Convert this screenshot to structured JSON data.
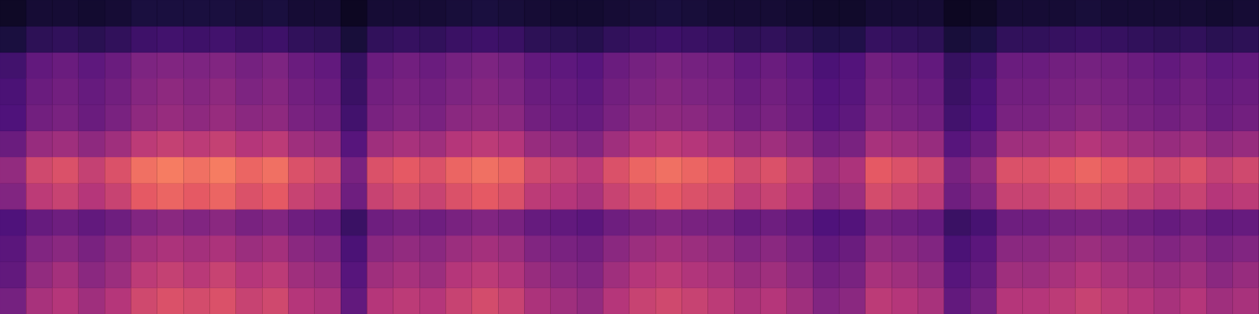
{
  "chart_data": {
    "type": "heatmap",
    "tick_labels": false,
    "ylim": [
      0,
      12
    ],
    "zlim": [
      0,
      1
    ],
    "cells": [
      [
        0.35,
        0.47,
        0.5,
        0.45,
        0.5,
        0.57,
        0.6,
        0.58,
        0.6,
        0.55,
        0.57,
        0.5,
        0.48,
        0.3,
        0.5,
        0.52,
        0.5,
        0.55,
        0.58,
        0.55,
        0.48,
        0.45,
        0.42,
        0.5,
        0.55,
        0.57,
        0.55,
        0.52,
        0.48,
        0.5,
        0.45,
        0.38,
        0.4,
        0.52,
        0.5,
        0.47,
        0.3,
        0.35,
        0.5,
        0.5,
        0.52,
        0.55,
        0.52,
        0.5,
        0.47,
        0.5,
        0.45,
        0.47
      ],
      [
        0.3,
        0.42,
        0.46,
        0.4,
        0.44,
        0.52,
        0.54,
        0.51,
        0.55,
        0.5,
        0.52,
        0.45,
        0.43,
        0.27,
        0.45,
        0.47,
        0.44,
        0.5,
        0.52,
        0.49,
        0.43,
        0.4,
        0.38,
        0.45,
        0.5,
        0.52,
        0.49,
        0.47,
        0.43,
        0.45,
        0.4,
        0.34,
        0.36,
        0.47,
        0.45,
        0.42,
        0.27,
        0.31,
        0.45,
        0.44,
        0.47,
        0.5,
        0.47,
        0.45,
        0.43,
        0.45,
        0.4,
        0.43
      ],
      [
        0.28,
        0.38,
        0.4,
        0.36,
        0.41,
        0.46,
        0.48,
        0.46,
        0.48,
        0.44,
        0.46,
        0.4,
        0.38,
        0.24,
        0.4,
        0.42,
        0.4,
        0.44,
        0.46,
        0.44,
        0.38,
        0.36,
        0.34,
        0.4,
        0.44,
        0.46,
        0.44,
        0.42,
        0.38,
        0.4,
        0.36,
        0.3,
        0.32,
        0.42,
        0.4,
        0.38,
        0.24,
        0.28,
        0.4,
        0.4,
        0.42,
        0.44,
        0.42,
        0.4,
        0.38,
        0.4,
        0.36,
        0.38
      ],
      [
        0.25,
        0.31,
        0.33,
        0.3,
        0.33,
        0.38,
        0.4,
        0.38,
        0.4,
        0.36,
        0.38,
        0.33,
        0.31,
        0.2,
        0.33,
        0.35,
        0.33,
        0.36,
        0.38,
        0.36,
        0.31,
        0.3,
        0.28,
        0.33,
        0.36,
        0.38,
        0.36,
        0.35,
        0.31,
        0.33,
        0.3,
        0.25,
        0.26,
        0.35,
        0.33,
        0.31,
        0.2,
        0.23,
        0.33,
        0.33,
        0.35,
        0.36,
        0.35,
        0.33,
        0.31,
        0.33,
        0.3,
        0.31
      ],
      [
        0.38,
        0.52,
        0.55,
        0.5,
        0.55,
        0.63,
        0.66,
        0.63,
        0.66,
        0.6,
        0.63,
        0.55,
        0.52,
        0.33,
        0.55,
        0.58,
        0.55,
        0.6,
        0.63,
        0.6,
        0.52,
        0.5,
        0.47,
        0.55,
        0.6,
        0.63,
        0.6,
        0.58,
        0.52,
        0.55,
        0.5,
        0.41,
        0.44,
        0.58,
        0.55,
        0.52,
        0.33,
        0.38,
        0.55,
        0.55,
        0.58,
        0.6,
        0.58,
        0.55,
        0.52,
        0.55,
        0.5,
        0.52
      ],
      [
        0.42,
        0.57,
        0.6,
        0.54,
        0.6,
        0.69,
        0.72,
        0.69,
        0.72,
        0.66,
        0.69,
        0.6,
        0.57,
        0.36,
        0.6,
        0.63,
        0.6,
        0.66,
        0.69,
        0.66,
        0.57,
        0.54,
        0.51,
        0.6,
        0.66,
        0.69,
        0.66,
        0.63,
        0.57,
        0.6,
        0.54,
        0.45,
        0.48,
        0.63,
        0.6,
        0.57,
        0.36,
        0.42,
        0.6,
        0.6,
        0.63,
        0.66,
        0.63,
        0.6,
        0.57,
        0.6,
        0.54,
        0.57
      ],
      [
        0.32,
        0.43,
        0.45,
        0.41,
        0.45,
        0.52,
        0.54,
        0.52,
        0.54,
        0.5,
        0.52,
        0.45,
        0.43,
        0.27,
        0.45,
        0.47,
        0.45,
        0.5,
        0.52,
        0.5,
        0.43,
        0.41,
        0.38,
        0.45,
        0.5,
        0.52,
        0.5,
        0.47,
        0.43,
        0.45,
        0.41,
        0.34,
        0.36,
        0.47,
        0.45,
        0.43,
        0.27,
        0.32,
        0.45,
        0.45,
        0.47,
        0.5,
        0.47,
        0.45,
        0.43,
        0.45,
        0.41,
        0.43
      ],
      [
        0.25,
        0.34,
        0.36,
        0.32,
        0.36,
        0.41,
        0.43,
        0.41,
        0.43,
        0.4,
        0.41,
        0.36,
        0.34,
        0.22,
        0.36,
        0.38,
        0.36,
        0.4,
        0.41,
        0.4,
        0.34,
        0.32,
        0.31,
        0.36,
        0.4,
        0.41,
        0.4,
        0.38,
        0.34,
        0.36,
        0.32,
        0.27,
        0.29,
        0.38,
        0.36,
        0.34,
        0.22,
        0.25,
        0.36,
        0.36,
        0.38,
        0.4,
        0.38,
        0.36,
        0.34,
        0.36,
        0.32,
        0.34
      ],
      [
        0.24,
        0.32,
        0.34,
        0.31,
        0.34,
        0.39,
        0.41,
        0.39,
        0.41,
        0.37,
        0.39,
        0.34,
        0.32,
        0.2,
        0.34,
        0.36,
        0.34,
        0.37,
        0.39,
        0.37,
        0.32,
        0.31,
        0.29,
        0.34,
        0.37,
        0.39,
        0.37,
        0.36,
        0.32,
        0.34,
        0.31,
        0.26,
        0.27,
        0.36,
        0.34,
        0.32,
        0.2,
        0.24,
        0.34,
        0.34,
        0.36,
        0.37,
        0.36,
        0.34,
        0.32,
        0.34,
        0.31,
        0.32
      ],
      [
        0.22,
        0.3,
        0.32,
        0.29,
        0.32,
        0.37,
        0.38,
        0.37,
        0.38,
        0.35,
        0.37,
        0.32,
        0.3,
        0.19,
        0.32,
        0.34,
        0.32,
        0.35,
        0.37,
        0.35,
        0.3,
        0.29,
        0.27,
        0.32,
        0.35,
        0.37,
        0.35,
        0.34,
        0.3,
        0.32,
        0.29,
        0.24,
        0.26,
        0.34,
        0.32,
        0.3,
        0.19,
        0.22,
        0.32,
        0.32,
        0.34,
        0.35,
        0.34,
        0.32,
        0.3,
        0.32,
        0.29,
        0.3
      ],
      [
        0.12,
        0.17,
        0.18,
        0.16,
        0.18,
        0.21,
        0.22,
        0.21,
        0.22,
        0.2,
        0.21,
        0.18,
        0.17,
        0.11,
        0.18,
        0.19,
        0.18,
        0.2,
        0.21,
        0.2,
        0.17,
        0.16,
        0.15,
        0.18,
        0.2,
        0.21,
        0.2,
        0.19,
        0.17,
        0.18,
        0.16,
        0.14,
        0.14,
        0.19,
        0.18,
        0.17,
        0.11,
        0.13,
        0.18,
        0.18,
        0.19,
        0.2,
        0.19,
        0.18,
        0.17,
        0.18,
        0.16,
        0.17
      ],
      [
        0.07,
        0.1,
        0.1,
        0.09,
        0.1,
        0.12,
        0.12,
        0.12,
        0.12,
        0.11,
        0.12,
        0.1,
        0.1,
        0.06,
        0.1,
        0.1,
        0.1,
        0.11,
        0.12,
        0.11,
        0.1,
        0.09,
        0.09,
        0.1,
        0.11,
        0.12,
        0.11,
        0.1,
        0.1,
        0.1,
        0.09,
        0.08,
        0.08,
        0.1,
        0.1,
        0.1,
        0.06,
        0.07,
        0.1,
        0.1,
        0.1,
        0.11,
        0.1,
        0.1,
        0.1,
        0.1,
        0.09,
        0.1
      ]
    ]
  }
}
